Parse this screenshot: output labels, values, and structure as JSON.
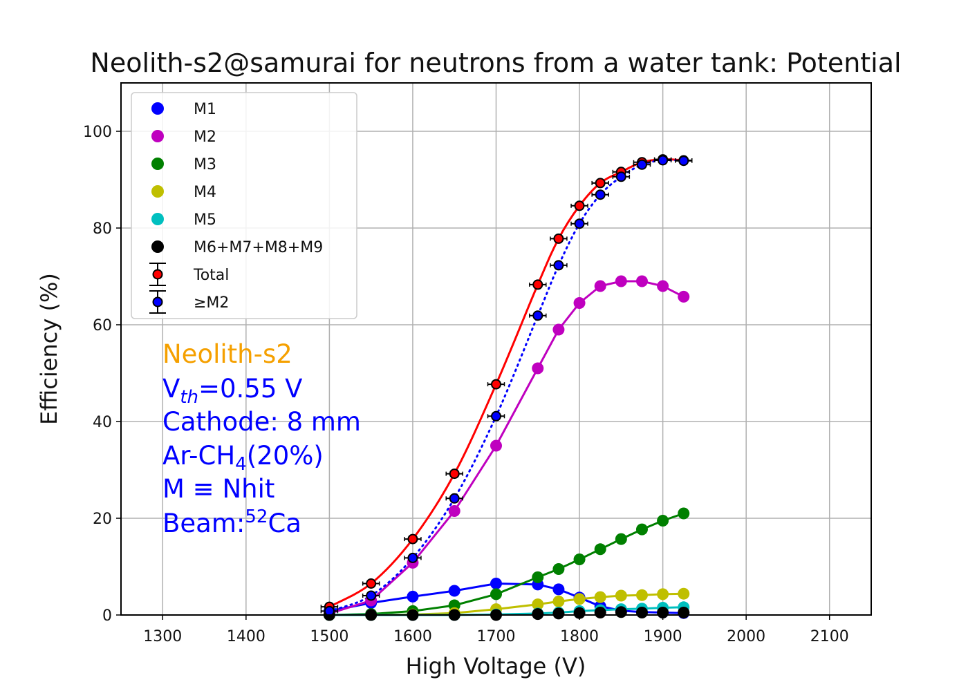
{
  "chart_data": {
    "type": "line",
    "title": "Neolith-s2@samurai for neutrons from a water tank: Potential",
    "xlabel": "High Voltage (V)",
    "ylabel": "Efficiency (%)",
    "xlim": [
      1250,
      2150
    ],
    "ylim": [
      0,
      110
    ],
    "xticks": [
      1300,
      1400,
      1500,
      1600,
      1700,
      1800,
      1900,
      2000,
      2100
    ],
    "yticks": [
      0,
      20,
      40,
      60,
      80,
      100
    ],
    "grid": true,
    "legend_position": "upper-left",
    "x": [
      1500,
      1550,
      1600,
      1650,
      1700,
      1750,
      1775,
      1800,
      1825,
      1850,
      1875,
      1900,
      1925
    ],
    "series": [
      {
        "name": "M1",
        "color": "#0000ff",
        "marker": "circle",
        "line": "solid",
        "values": [
          0.8,
          2.5,
          3.8,
          5.0,
          6.5,
          6.3,
          5.3,
          3.6,
          1.8,
          0.9,
          0.6,
          0.5,
          0.4
        ]
      },
      {
        "name": "M2",
        "color": "#bf00bf",
        "marker": "circle",
        "line": "solid",
        "values": [
          0.3,
          3.0,
          10.8,
          21.5,
          35.0,
          51.0,
          59.0,
          64.5,
          68.0,
          69.0,
          69.0,
          68.0,
          65.8
        ]
      },
      {
        "name": "M3",
        "color": "#008000",
        "marker": "circle",
        "line": "solid",
        "values": [
          0.0,
          0.2,
          0.8,
          2.0,
          4.3,
          7.8,
          9.5,
          11.5,
          13.6,
          15.7,
          17.7,
          19.5,
          21.0
        ]
      },
      {
        "name": "M4",
        "color": "#bfbf00",
        "marker": "circle",
        "line": "solid",
        "values": [
          0.0,
          0.0,
          0.1,
          0.4,
          1.2,
          2.2,
          2.8,
          3.3,
          3.7,
          4.0,
          4.1,
          4.3,
          4.4
        ]
      },
      {
        "name": "M5",
        "color": "#00bfbf",
        "marker": "circle",
        "line": "solid",
        "values": [
          0.0,
          0.0,
          0.0,
          0.0,
          0.1,
          0.3,
          0.5,
          0.8,
          1.0,
          1.2,
          1.3,
          1.5,
          1.6
        ]
      },
      {
        "name": "M6+M7+M8+M9",
        "color": "#000000",
        "marker": "circle",
        "line": "none",
        "values": [
          0.0,
          0.0,
          0.0,
          0.0,
          0.0,
          0.2,
          0.3,
          0.4,
          0.5,
          0.6,
          0.5,
          0.5,
          0.5
        ]
      },
      {
        "name": "Total",
        "color": "#ff0000",
        "line_color": "#ff0000",
        "marker": "circle-errorbar",
        "line": "solid",
        "values": [
          1.7,
          6.5,
          15.7,
          29.2,
          47.7,
          68.3,
          77.8,
          84.6,
          89.3,
          91.6,
          93.6,
          94.2,
          94.0
        ]
      },
      {
        "name": "≥M2",
        "color": "#0000ff",
        "line_color": "#0000ff",
        "marker": "circle-errorbar",
        "line": "dotted",
        "values": [
          0.8,
          4.0,
          11.8,
          24.1,
          41.1,
          61.9,
          72.3,
          80.9,
          86.9,
          90.6,
          93.1,
          94.0,
          93.9
        ]
      }
    ],
    "annotations": {
      "detector": "Neolith-s2",
      "detector_color": "#f5a000",
      "vth_main": "V",
      "vth_sub": "th",
      "vth_value": "=0.55 V",
      "cathode": "Cathode: 8 mm",
      "gas_main": "Ar-CH",
      "gas_sub": "4",
      "gas_rest": "(20%)",
      "mdef": "M ≡ Nhit",
      "beam_main": "Beam:",
      "beam_sup": "52",
      "beam_rest": "Ca",
      "text_color": "#0000ff"
    }
  }
}
